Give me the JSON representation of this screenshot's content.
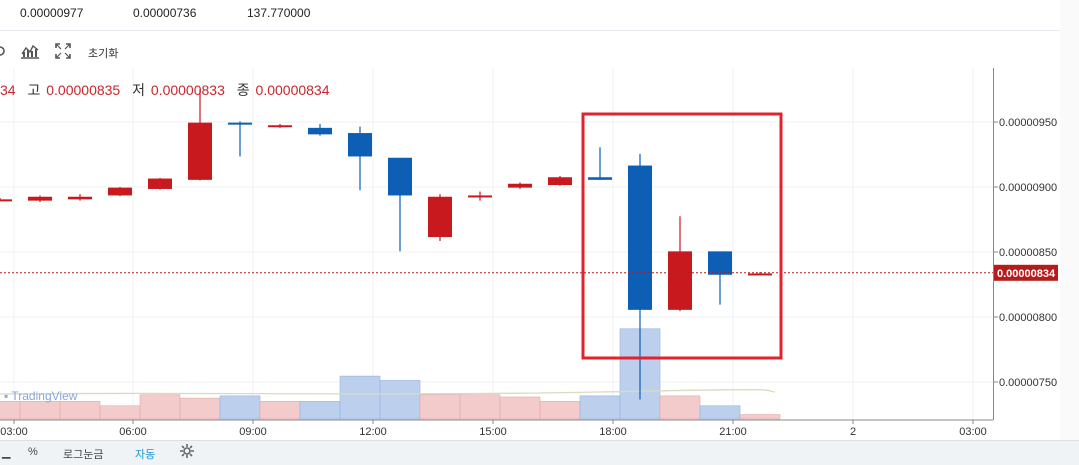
{
  "stats": {
    "values": [
      "0.00000977",
      "0.00000736",
      "137.770000"
    ]
  },
  "toolbar": {
    "reset_label": "초기화"
  },
  "ohlc": {
    "close_prefix_cut": "34",
    "high_label": "고",
    "high_value": "0.00000835",
    "low_label": "저",
    "low_value": "0.00000833",
    "close_label": "종",
    "close_value": "0.00000834"
  },
  "price_axis": {
    "ticks": [
      "0.00000950",
      "0.00000900",
      "0.00000850",
      "0.00000800",
      "0.00000750"
    ],
    "current_price_label": "0.00000834"
  },
  "time_axis": {
    "ticks": [
      "03:00",
      "06:00",
      "09:00",
      "12:00",
      "15:00",
      "18:00",
      "21:00",
      "2",
      "03:00"
    ]
  },
  "watermark": "TradingView",
  "bottom_bar": {
    "percent_label": "%",
    "log_label": "로그눈금",
    "auto_label": "자동"
  },
  "colors": {
    "up": "#c8191f",
    "down": "#0d5fb5",
    "vol_up": "#f4cbcb",
    "vol_down": "#bcd0ee",
    "highlight_box": "#e0232d",
    "current_price": "#b71c1c"
  },
  "chart_data": {
    "type": "candlestick",
    "interval": "1h",
    "price_range": [
      7.2e-06,
      9.9e-06
    ],
    "candles": [
      {
        "o": 8.905e-06,
        "h": 8.915e-06,
        "l": 8.895e-06,
        "c": 8.905e-06,
        "dir": "up"
      },
      {
        "o": 8.895e-06,
        "h": 8.935e-06,
        "l": 8.885e-06,
        "c": 8.925e-06,
        "dir": "up"
      },
      {
        "o": 8.905e-06,
        "h": 8.945e-06,
        "l": 8.895e-06,
        "c": 8.925e-06,
        "dir": "up"
      },
      {
        "o": 8.935e-06,
        "h": 9e-06,
        "l": 8.93e-06,
        "c": 8.995e-06,
        "dir": "up"
      },
      {
        "o": 8.985e-06,
        "h": 9.07e-06,
        "l": 8.98e-06,
        "c": 9.065e-06,
        "dir": "up"
      },
      {
        "o": 9.055e-06,
        "h": 9.75e-06,
        "l": 9.05e-06,
        "c": 9.495e-06,
        "dir": "up"
      },
      {
        "o": 9.495e-06,
        "h": 9.505e-06,
        "l": 9.235e-06,
        "c": 9.485e-06,
        "dir": "down"
      },
      {
        "o": 9.475e-06,
        "h": 9.485e-06,
        "l": 9.455e-06,
        "c": 9.465e-06,
        "dir": "up"
      },
      {
        "o": 9.455e-06,
        "h": 9.485e-06,
        "l": 9.395e-06,
        "c": 9.405e-06,
        "dir": "down"
      },
      {
        "o": 9.415e-06,
        "h": 9.465e-06,
        "l": 8.975e-06,
        "c": 9.235e-06,
        "dir": "down"
      },
      {
        "o": 9.225e-06,
        "h": 9.225e-06,
        "l": 8.505e-06,
        "c": 8.935e-06,
        "dir": "down"
      },
      {
        "o": 8.615e-06,
        "h": 8.945e-06,
        "l": 8.585e-06,
        "c": 8.925e-06,
        "dir": "up"
      },
      {
        "o": 8.925e-06,
        "h": 8.965e-06,
        "l": 8.895e-06,
        "c": 8.935e-06,
        "dir": "up"
      },
      {
        "o": 8.995e-06,
        "h": 9.035e-06,
        "l": 8.985e-06,
        "c": 9.025e-06,
        "dir": "up"
      },
      {
        "o": 9.015e-06,
        "h": 9.085e-06,
        "l": 9.01e-06,
        "c": 9.075e-06,
        "dir": "up"
      },
      {
        "o": 9.075e-06,
        "h": 9.305e-06,
        "l": 9.055e-06,
        "c": 9.055e-06,
        "dir": "down"
      },
      {
        "o": 9.165e-06,
        "h": 9.255e-06,
        "l": 7.365e-06,
        "c": 8.055e-06,
        "dir": "down"
      },
      {
        "o": 8.055e-06,
        "h": 8.775e-06,
        "l": 8.045e-06,
        "c": 8.505e-06,
        "dir": "up"
      },
      {
        "o": 8.505e-06,
        "h": 8.505e-06,
        "l": 8.095e-06,
        "c": 8.325e-06,
        "dir": "down"
      },
      {
        "o": 8.335e-06,
        "h": 8.345e-06,
        "l": 8.325e-06,
        "c": 8.335e-06,
        "dir": "up"
      }
    ],
    "volume": [
      {
        "v": 0.16,
        "dir": "up"
      },
      {
        "v": 0.16,
        "dir": "up"
      },
      {
        "v": 0.16,
        "dir": "up"
      },
      {
        "v": 0.12,
        "dir": "up"
      },
      {
        "v": 0.22,
        "dir": "up"
      },
      {
        "v": 0.19,
        "dir": "up"
      },
      {
        "v": 0.21,
        "dir": "down"
      },
      {
        "v": 0.16,
        "dir": "up"
      },
      {
        "v": 0.16,
        "dir": "down"
      },
      {
        "v": 0.39,
        "dir": "down"
      },
      {
        "v": 0.35,
        "dir": "down"
      },
      {
        "v": 0.22,
        "dir": "up"
      },
      {
        "v": 0.22,
        "dir": "up"
      },
      {
        "v": 0.2,
        "dir": "up"
      },
      {
        "v": 0.16,
        "dir": "up"
      },
      {
        "v": 0.21,
        "dir": "down"
      },
      {
        "v": 0.82,
        "dir": "down"
      },
      {
        "v": 0.21,
        "dir": "up"
      },
      {
        "v": 0.12,
        "dir": "down"
      },
      {
        "v": 0.04,
        "dir": "up"
      }
    ],
    "current_price": 8.34e-06
  }
}
